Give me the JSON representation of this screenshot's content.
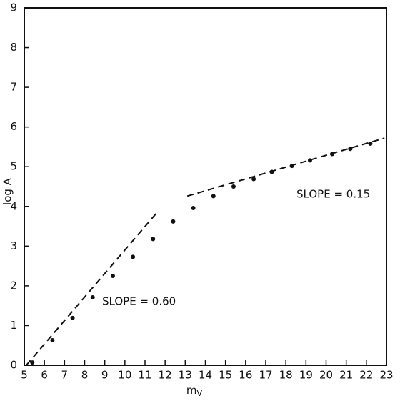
{
  "chart_data": {
    "type": "scatter",
    "xlabel": "m",
    "xlabel_sub": "V",
    "ylabel": "log A",
    "x": [
      5.4,
      6.4,
      7.4,
      8.4,
      9.4,
      10.4,
      11.4,
      12.4,
      13.4,
      14.4,
      15.4,
      16.4,
      17.3,
      18.3,
      19.2,
      20.3,
      21.2,
      22.2
    ],
    "values": [
      0.07,
      0.63,
      1.19,
      1.71,
      2.25,
      2.73,
      3.18,
      3.62,
      3.96,
      4.26,
      4.5,
      4.69,
      4.87,
      5.02,
      5.16,
      5.32,
      5.45,
      5.58
    ],
    "color": "#111111",
    "fit_lines": [
      {
        "x": [
          5.1,
          11.6
        ],
        "values": [
          0,
          3.85
        ],
        "label": "SLOPE = 0.60",
        "dashed": true
      },
      {
        "x": [
          13.1,
          22.9
        ],
        "values": [
          4.26,
          5.72
        ],
        "label": "SLOPE = 0.15",
        "dashed": true
      }
    ],
    "xlim": [
      5,
      23
    ],
    "ylim": [
      0,
      9
    ],
    "xticks": [
      5,
      6,
      7,
      8,
      9,
      10,
      11,
      12,
      13,
      14,
      15,
      16,
      17,
      18,
      19,
      20,
      21,
      22,
      23
    ],
    "yticks": [
      0,
      1,
      2,
      3,
      4,
      5,
      6,
      7,
      8,
      9
    ],
    "grid": false
  }
}
